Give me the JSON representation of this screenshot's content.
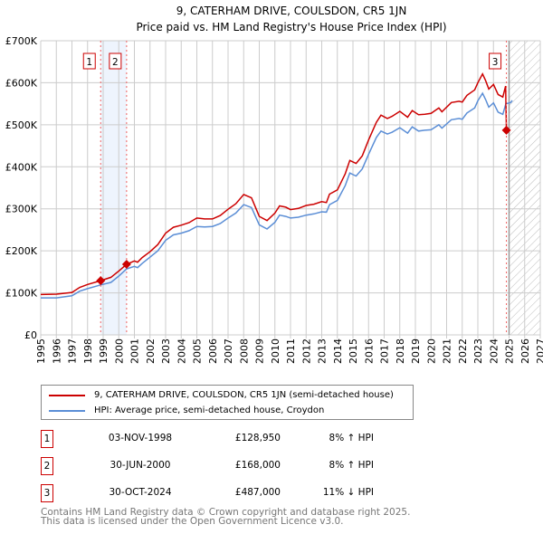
{
  "chart_data": {
    "type": "line",
    "title": "9, CATERHAM DRIVE, COULSDON, CR5 1JN",
    "subtitle": "Price paid vs. HM Land Registry's House Price Index (HPI)",
    "xlim": [
      1995,
      2027
    ],
    "ylim": [
      0,
      700000
    ],
    "x_ticks": [
      "1995",
      "1996",
      "1997",
      "1998",
      "1999",
      "2000",
      "2001",
      "2002",
      "2003",
      "2004",
      "2005",
      "2006",
      "2007",
      "2008",
      "2009",
      "2010",
      "2011",
      "2012",
      "2013",
      "2014",
      "2015",
      "2016",
      "2017",
      "2018",
      "2019",
      "2020",
      "2021",
      "2022",
      "2023",
      "2024",
      "2025",
      "2026",
      "2027"
    ],
    "y_ticks": [
      {
        "v": 0,
        "label": "£0"
      },
      {
        "v": 100000,
        "label": "£100K"
      },
      {
        "v": 200000,
        "label": "£200K"
      },
      {
        "v": 300000,
        "label": "£300K"
      },
      {
        "v": 400000,
        "label": "£400K"
      },
      {
        "v": 500000,
        "label": "£500K"
      },
      {
        "v": 600000,
        "label": "£600K"
      },
      {
        "v": 700000,
        "label": "£700K"
      }
    ],
    "grid": true,
    "shaded_period": [
      1998.84,
      2000.5
    ],
    "forecast_hatch_from": 2025.0,
    "series": [
      {
        "name": "9, CATERHAM DRIVE, COULSDON, CR5 1JN (semi-detached house)",
        "color": "#cc0000",
        "x": [
          1995,
          1996,
          1997,
          1997.5,
          1998,
          1998.84,
          1999.5,
          2000,
          2000.5,
          2001,
          2001.2,
          2001.5,
          2002,
          2002.5,
          2003,
          2003.5,
          2004,
          2004.5,
          2005,
          2005.5,
          2006,
          2006.5,
          2007,
          2007.5,
          2008,
          2008.5,
          2009,
          2009.5,
          2010,
          2010.3,
          2010.7,
          2011,
          2011.5,
          2012,
          2012.5,
          2013,
          2013.3,
          2013.5,
          2014,
          2014.5,
          2014.8,
          2015.2,
          2015.6,
          2016,
          2016.5,
          2016.8,
          2017.2,
          2017.5,
          2018,
          2018.5,
          2018.8,
          2019.2,
          2019.6,
          2020,
          2020.5,
          2020.7,
          2021.3,
          2021.8,
          2022,
          2022.3,
          2022.8,
          2023,
          2023.3,
          2023.5,
          2023.7,
          2024,
          2024.3,
          2024.6,
          2024.78,
          2024.83,
          2025.0
        ],
        "y": [
          96000,
          97000,
          101000,
          113000,
          120000,
          128950,
          137000,
          152000,
          168000,
          176000,
          173000,
          184000,
          198000,
          215000,
          242000,
          256000,
          261000,
          267000,
          278000,
          276000,
          276000,
          284000,
          299000,
          312000,
          334000,
          326000,
          282000,
          272000,
          290000,
          307000,
          304000,
          298000,
          301000,
          308000,
          311000,
          317000,
          315000,
          335000,
          345000,
          383000,
          415000,
          408000,
          426000,
          464000,
          506000,
          523000,
          515000,
          520000,
          532000,
          518000,
          534000,
          524000,
          525000,
          527000,
          540000,
          531000,
          553000,
          556000,
          554000,
          570000,
          583000,
          600000,
          621000,
          605000,
          585000,
          596000,
          572000,
          566000,
          592000,
          487000,
          490000
        ]
      },
      {
        "name": "HPI: Average price, semi-detached house, Croydon",
        "color": "#5b8ed6",
        "x": [
          1995,
          1996,
          1997,
          1997.5,
          1998,
          1998.84,
          1999.5,
          2000,
          2000.5,
          2001,
          2001.2,
          2001.5,
          2002,
          2002.5,
          2003,
          2003.5,
          2004,
          2004.5,
          2005,
          2005.5,
          2006,
          2006.5,
          2007,
          2007.5,
          2008,
          2008.5,
          2009,
          2009.5,
          2010,
          2010.3,
          2010.7,
          2011,
          2011.5,
          2012,
          2012.5,
          2013,
          2013.3,
          2013.5,
          2014,
          2014.5,
          2014.8,
          2015.2,
          2015.6,
          2016,
          2016.5,
          2016.8,
          2017.2,
          2017.5,
          2018,
          2018.5,
          2018.8,
          2019.2,
          2019.6,
          2020,
          2020.5,
          2020.7,
          2021.3,
          2021.8,
          2022,
          2022.3,
          2022.8,
          2023,
          2023.3,
          2023.5,
          2023.7,
          2024,
          2024.3,
          2024.6,
          2024.8,
          2025.1,
          2025.2
        ],
        "y": [
          88000,
          88000,
          93000,
          104000,
          110000,
          119000,
          125000,
          140000,
          157000,
          163000,
          160000,
          170000,
          185000,
          200000,
          225000,
          238000,
          242000,
          248000,
          258000,
          257000,
          258000,
          265000,
          278000,
          290000,
          310000,
          303000,
          262000,
          252000,
          268000,
          285000,
          282000,
          278000,
          280000,
          285000,
          288000,
          293000,
          292000,
          310000,
          320000,
          355000,
          385000,
          378000,
          395000,
          430000,
          470000,
          485000,
          478000,
          482000,
          493000,
          480000,
          495000,
          485000,
          487000,
          488000,
          500000,
          492000,
          512000,
          515000,
          513000,
          528000,
          540000,
          557000,
          575000,
          560000,
          542000,
          552000,
          530000,
          525000,
          550000,
          553000,
          558000
        ]
      }
    ],
    "sales": [
      {
        "n": "1",
        "date": "03-NOV-1998",
        "x": 1998.84,
        "price_value": 128950,
        "price": "£128,950",
        "hpi": "8% ↑ HPI"
      },
      {
        "n": "2",
        "date": "30-JUN-2000",
        "x": 2000.5,
        "price_value": 168000,
        "price": "£168,000",
        "hpi": "8% ↑ HPI"
      },
      {
        "n": "3",
        "date": "30-OCT-2024",
        "x": 2024.83,
        "price_value": 487000,
        "price": "£487,000",
        "hpi": "11% ↓ HPI"
      }
    ]
  },
  "footer": [
    "Contains HM Land Registry data © Crown copyright and database right 2025.",
    "This data is licensed under the Open Government Licence v3.0."
  ]
}
